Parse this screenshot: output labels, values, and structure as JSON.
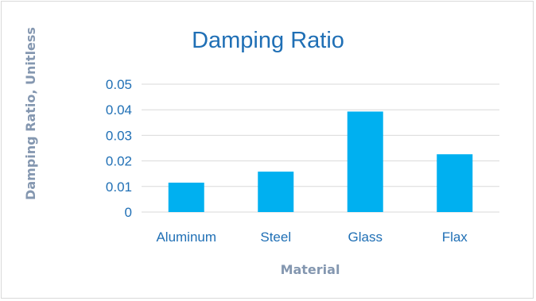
{
  "chart_data": {
    "type": "bar",
    "title": "Damping Ratio",
    "xlabel": "Material",
    "ylabel": "Damping Ratio, Unitless",
    "categories": [
      "Aluminum",
      "Steel",
      "Glass",
      "Flax"
    ],
    "values": [
      0.0115,
      0.0158,
      0.0393,
      0.0226
    ],
    "ylim": [
      0,
      0.05
    ],
    "yticks": [
      "0",
      "0.01",
      "0.02",
      "0.03",
      "0.04",
      "0.05"
    ],
    "grid": true,
    "legend": "none",
    "colors": {
      "bar": "#00b0f0",
      "text": "#1f6fb5",
      "axis_title": "#8497b0",
      "grid": "#d9d9d9"
    }
  }
}
